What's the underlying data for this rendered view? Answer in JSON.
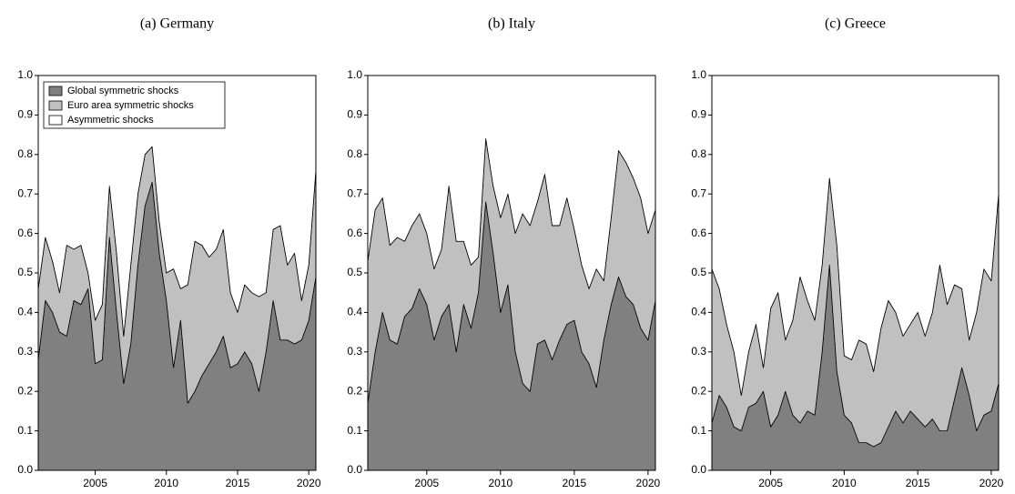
{
  "chart_data": [
    {
      "type": "stacked_area",
      "title": "(a) Germany",
      "legend": "upper left",
      "x": [
        2001,
        2001.5,
        2002,
        2002.5,
        2003,
        2003.5,
        2004,
        2004.5,
        2005,
        2005.5,
        2006,
        2006.5,
        2007,
        2007.5,
        2008,
        2008.5,
        2009,
        2009.5,
        2010,
        2010.5,
        2011,
        2011.5,
        2012,
        2012.5,
        2013,
        2013.5,
        2014,
        2014.5,
        2015,
        2015.5,
        2016,
        2016.5,
        2017,
        2017.5,
        2018,
        2018.5,
        2019,
        2019.5,
        2020,
        2020.5
      ],
      "xlim": [
        2001,
        2020.5
      ],
      "xticks": [
        2005,
        2010,
        2015,
        2020
      ],
      "ylim": [
        0,
        1
      ],
      "yticks": [
        {
          "value": 0,
          "label": "0.0"
        },
        0.1,
        0.2,
        0.3,
        0.4,
        0.5,
        0.6,
        0.7,
        0.8,
        0.9,
        {
          "value": 1,
          "label": "1.0"
        }
      ],
      "series": [
        {
          "name": "Global symmetric shocks",
          "color": "#808080",
          "values": [
            0.28,
            0.43,
            0.4,
            0.35,
            0.34,
            0.43,
            0.42,
            0.46,
            0.27,
            0.28,
            0.59,
            0.4,
            0.22,
            0.32,
            0.52,
            0.67,
            0.73,
            0.55,
            0.43,
            0.26,
            0.38,
            0.17,
            0.2,
            0.24,
            0.27,
            0.3,
            0.34,
            0.26,
            0.27,
            0.3,
            0.27,
            0.2,
            0.3,
            0.43,
            0.33,
            0.33,
            0.32,
            0.33,
            0.38,
            0.49
          ]
        },
        {
          "name": "Euro area symmetric shocks",
          "color": "#c0c0c0",
          "values": [
            0.18,
            0.16,
            0.13,
            0.1,
            0.23,
            0.13,
            0.15,
            0.04,
            0.11,
            0.14,
            0.13,
            0.15,
            0.12,
            0.2,
            0.18,
            0.13,
            0.09,
            0.08,
            0.07,
            0.25,
            0.08,
            0.3,
            0.38,
            0.33,
            0.27,
            0.26,
            0.27,
            0.19,
            0.13,
            0.17,
            0.18,
            0.24,
            0.15,
            0.18,
            0.29,
            0.19,
            0.23,
            0.1,
            0.14,
            0.27
          ]
        },
        {
          "name": "Asymmetric shocks",
          "color": "#ffffff",
          "values": [
            0.54,
            0.41,
            0.47,
            0.55,
            0.43,
            0.44,
            0.43,
            0.5,
            0.62,
            0.58,
            0.28,
            0.45,
            0.66,
            0.48,
            0.3,
            0.2,
            0.18,
            0.37,
            0.5,
            0.49,
            0.54,
            0.53,
            0.42,
            0.43,
            0.46,
            0.44,
            0.39,
            0.55,
            0.6,
            0.53,
            0.55,
            0.56,
            0.55,
            0.39,
            0.38,
            0.48,
            0.45,
            0.57,
            0.48,
            0.24
          ]
        }
      ]
    },
    {
      "type": "stacked_area",
      "title": "(b) Italy",
      "x": [
        2001,
        2001.5,
        2002,
        2002.5,
        2003,
        2003.5,
        2004,
        2004.5,
        2005,
        2005.5,
        2006,
        2006.5,
        2007,
        2007.5,
        2008,
        2008.5,
        2009,
        2009.5,
        2010,
        2010.5,
        2011,
        2011.5,
        2012,
        2012.5,
        2013,
        2013.5,
        2014,
        2014.5,
        2015,
        2015.5,
        2016,
        2016.5,
        2017,
        2017.5,
        2018,
        2018.5,
        2019,
        2019.5,
        2020,
        2020.5
      ],
      "xlim": [
        2001,
        2020.5
      ],
      "xticks": [
        2005,
        2010,
        2015,
        2020
      ],
      "ylim": [
        0,
        1
      ],
      "yticks": [
        {
          "value": 0,
          "label": "0.0"
        },
        0.1,
        0.2,
        0.3,
        0.4,
        0.5,
        0.6,
        0.7,
        0.8,
        0.9,
        {
          "value": 1,
          "label": "1.0"
        }
      ],
      "series": [
        {
          "color": "#808080",
          "values": [
            0.17,
            0.3,
            0.4,
            0.33,
            0.32,
            0.39,
            0.41,
            0.46,
            0.42,
            0.33,
            0.39,
            0.42,
            0.3,
            0.42,
            0.36,
            0.45,
            0.68,
            0.55,
            0.4,
            0.47,
            0.3,
            0.22,
            0.2,
            0.32,
            0.33,
            0.28,
            0.33,
            0.37,
            0.38,
            0.3,
            0.27,
            0.21,
            0.33,
            0.42,
            0.49,
            0.44,
            0.42,
            0.36,
            0.33,
            0.43
          ]
        },
        {
          "color": "#c0c0c0",
          "values": [
            0.36,
            0.36,
            0.29,
            0.24,
            0.27,
            0.19,
            0.21,
            0.19,
            0.18,
            0.18,
            0.17,
            0.3,
            0.28,
            0.16,
            0.16,
            0.09,
            0.16,
            0.17,
            0.24,
            0.23,
            0.3,
            0.43,
            0.42,
            0.36,
            0.42,
            0.34,
            0.29,
            0.32,
            0.23,
            0.22,
            0.19,
            0.3,
            0.15,
            0.22,
            0.32,
            0.34,
            0.32,
            0.33,
            0.27,
            0.23
          ]
        },
        {
          "color": "#ffffff",
          "values": [
            0.47,
            0.34,
            0.31,
            0.43,
            0.41,
            0.42,
            0.38,
            0.35,
            0.4,
            0.49,
            0.44,
            0.28,
            0.42,
            0.42,
            0.48,
            0.46,
            0.16,
            0.28,
            0.36,
            0.3,
            0.4,
            0.35,
            0.38,
            0.32,
            0.25,
            0.38,
            0.38,
            0.31,
            0.39,
            0.48,
            0.54,
            0.49,
            0.52,
            0.36,
            0.19,
            0.22,
            0.26,
            0.31,
            0.4,
            0.34
          ]
        }
      ]
    },
    {
      "type": "stacked_area",
      "title": "(c) Greece",
      "x": [
        2001,
        2001.5,
        2002,
        2002.5,
        2003,
        2003.5,
        2004,
        2004.5,
        2005,
        2005.5,
        2006,
        2006.5,
        2007,
        2007.5,
        2008,
        2008.5,
        2009,
        2009.5,
        2010,
        2010.5,
        2011,
        2011.5,
        2012,
        2012.5,
        2013,
        2013.5,
        2014,
        2014.5,
        2015,
        2015.5,
        2016,
        2016.5,
        2017,
        2017.5,
        2018,
        2018.5,
        2019,
        2019.5,
        2020,
        2020.5
      ],
      "xlim": [
        2001,
        2020.5
      ],
      "xticks": [
        2005,
        2010,
        2015,
        2020
      ],
      "ylim": [
        0,
        1
      ],
      "yticks": [
        {
          "value": 0,
          "label": "0.0"
        },
        0.1,
        0.2,
        0.3,
        0.4,
        0.5,
        0.6,
        0.7,
        0.8,
        0.9,
        {
          "value": 1,
          "label": "1.0"
        }
      ],
      "series": [
        {
          "color": "#808080",
          "values": [
            0.12,
            0.19,
            0.16,
            0.11,
            0.1,
            0.16,
            0.17,
            0.2,
            0.11,
            0.14,
            0.2,
            0.14,
            0.12,
            0.15,
            0.14,
            0.3,
            0.52,
            0.25,
            0.14,
            0.12,
            0.07,
            0.07,
            0.06,
            0.07,
            0.11,
            0.15,
            0.12,
            0.15,
            0.13,
            0.11,
            0.13,
            0.1,
            0.1,
            0.18,
            0.26,
            0.19,
            0.1,
            0.14,
            0.15,
            0.22
          ]
        },
        {
          "color": "#c0c0c0",
          "values": [
            0.39,
            0.27,
            0.21,
            0.19,
            0.09,
            0.14,
            0.2,
            0.06,
            0.3,
            0.31,
            0.13,
            0.24,
            0.37,
            0.28,
            0.24,
            0.22,
            0.22,
            0.32,
            0.15,
            0.16,
            0.26,
            0.25,
            0.19,
            0.29,
            0.32,
            0.25,
            0.22,
            0.22,
            0.27,
            0.23,
            0.27,
            0.42,
            0.32,
            0.29,
            0.2,
            0.14,
            0.3,
            0.37,
            0.33,
            0.48
          ]
        },
        {
          "color": "#ffffff",
          "values": [
            0.49,
            0.54,
            0.63,
            0.7,
            0.81,
            0.7,
            0.63,
            0.74,
            0.59,
            0.55,
            0.67,
            0.62,
            0.51,
            0.57,
            0.62,
            0.48,
            0.26,
            0.43,
            0.71,
            0.72,
            0.67,
            0.68,
            0.75,
            0.64,
            0.57,
            0.6,
            0.66,
            0.63,
            0.6,
            0.66,
            0.6,
            0.48,
            0.58,
            0.53,
            0.54,
            0.67,
            0.6,
            0.49,
            0.52,
            0.3
          ]
        }
      ]
    }
  ]
}
